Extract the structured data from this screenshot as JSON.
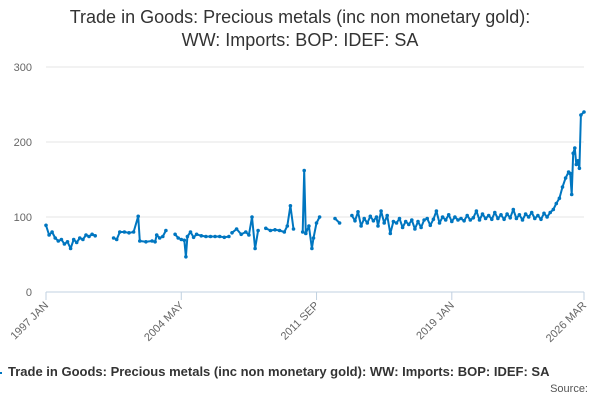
{
  "chart_data": {
    "type": "line",
    "title_lines": [
      "Trade in Goods: Precious metals (inc non monetary gold):",
      "WW: Imports: BOP: IDEF: SA"
    ],
    "xlabel": "",
    "ylabel": "",
    "ylim": [
      0,
      300
    ],
    "yticks": [
      0,
      100,
      200,
      300
    ],
    "xticks": [
      "1997 JAN",
      "2004 MAY",
      "2011 SEP",
      "2019 JAN",
      "2026 MAR"
    ],
    "grid": true,
    "legend_position": "bottom",
    "series": [
      {
        "name": "Trade in Goods: Precious metals (inc non monetary gold): WW: Imports: BOP: IDEF: SA",
        "color": "#0076c0",
        "points": [
          [
            "1997-01",
            89
          ],
          [
            "1997-03",
            76
          ],
          [
            "1997-05",
            80
          ],
          [
            "1997-07",
            72
          ],
          [
            "1997-09",
            68
          ],
          [
            "1997-11",
            70
          ],
          [
            "1998-01",
            64
          ],
          [
            "1998-03",
            67
          ],
          [
            "1998-05",
            58
          ],
          [
            "1998-07",
            70
          ],
          [
            "1998-09",
            66
          ],
          [
            "1998-11",
            72
          ],
          [
            "1999-01",
            70
          ],
          [
            "1999-03",
            76
          ],
          [
            "1999-05",
            74
          ],
          [
            "1999-07",
            77
          ],
          [
            "1999-09",
            75
          ],
          null,
          [
            "2000-09",
            72
          ],
          [
            "2000-11",
            70
          ],
          [
            "2001-01",
            80
          ],
          [
            "2001-04",
            80
          ],
          [
            "2001-07",
            79
          ],
          [
            "2001-10",
            80
          ],
          [
            "2002-01",
            101
          ],
          [
            "2002-02",
            68
          ],
          [
            "2002-06",
            67
          ],
          [
            "2002-10",
            68
          ],
          [
            "2002-12",
            67
          ],
          [
            "2003-01",
            76
          ],
          [
            "2003-03",
            72
          ],
          [
            "2003-05",
            74
          ],
          [
            "2003-07",
            82
          ],
          null,
          [
            "2004-01",
            77
          ],
          [
            "2004-03",
            72
          ],
          [
            "2004-05",
            70
          ],
          [
            "2004-07",
            69
          ],
          [
            "2004-08",
            47
          ],
          [
            "2004-09",
            74
          ],
          [
            "2004-11",
            80
          ],
          [
            "2005-01",
            73
          ],
          [
            "2005-03",
            77
          ],
          [
            "2005-06",
            75
          ],
          [
            "2005-09",
            74
          ],
          [
            "2005-12",
            74
          ],
          [
            "2006-03",
            74
          ],
          [
            "2006-06",
            74
          ],
          [
            "2006-09",
            73
          ],
          [
            "2006-12",
            74
          ],
          null,
          [
            "2007-02",
            79
          ],
          [
            "2007-05",
            84
          ],
          [
            "2007-08",
            77
          ],
          [
            "2007-11",
            80
          ],
          [
            "2008-01",
            76
          ],
          [
            "2008-03",
            100
          ],
          [
            "2008-05",
            58
          ],
          [
            "2008-07",
            82
          ],
          null,
          [
            "2008-12",
            85
          ],
          [
            "2009-03",
            82
          ],
          [
            "2009-06",
            83
          ],
          [
            "2009-09",
            82
          ],
          [
            "2009-12",
            80
          ],
          [
            "2010-02",
            88
          ],
          [
            "2010-04",
            115
          ],
          [
            "2010-06",
            84
          ],
          null,
          [
            "2010-12",
            80
          ],
          [
            "2011-01",
            162
          ],
          [
            "2011-02",
            78
          ],
          [
            "2011-04",
            88
          ],
          [
            "2011-06",
            58
          ],
          [
            "2011-07",
            72
          ],
          [
            "2011-09",
            92
          ],
          [
            "2011-11",
            100
          ],
          null,
          [
            "2012-09",
            98
          ],
          [
            "2012-12",
            92
          ],
          null,
          [
            "2013-08",
            102
          ],
          [
            "2013-10",
            95
          ],
          [
            "2013-12",
            107
          ],
          [
            "2014-02",
            88
          ],
          [
            "2014-04",
            98
          ],
          [
            "2014-06",
            92
          ],
          [
            "2014-08",
            101
          ],
          [
            "2014-10",
            95
          ],
          [
            "2014-12",
            100
          ],
          [
            "2015-01",
            88
          ],
          [
            "2015-03",
            108
          ],
          [
            "2015-05",
            92
          ],
          [
            "2015-07",
            102
          ],
          [
            "2015-09",
            78
          ],
          [
            "2015-11",
            94
          ],
          [
            "2016-01",
            92
          ],
          [
            "2016-03",
            98
          ],
          [
            "2016-05",
            86
          ],
          [
            "2016-07",
            94
          ],
          [
            "2016-09",
            90
          ],
          [
            "2016-11",
            96
          ],
          [
            "2017-01",
            84
          ],
          [
            "2017-03",
            94
          ],
          [
            "2017-05",
            86
          ],
          [
            "2017-07",
            96
          ],
          [
            "2017-09",
            98
          ],
          [
            "2017-11",
            89
          ],
          [
            "2018-01",
            97
          ],
          [
            "2018-03",
            108
          ],
          [
            "2018-05",
            92
          ],
          [
            "2018-07",
            100
          ],
          [
            "2018-09",
            96
          ],
          [
            "2018-11",
            103
          ],
          [
            "2019-01",
            94
          ],
          [
            "2019-03",
            100
          ],
          [
            "2019-05",
            96
          ],
          [
            "2019-07",
            98
          ],
          [
            "2019-09",
            95
          ],
          [
            "2019-11",
            102
          ],
          [
            "2020-01",
            96
          ],
          [
            "2020-03",
            99
          ],
          [
            "2020-05",
            108
          ],
          [
            "2020-07",
            96
          ],
          [
            "2020-09",
            104
          ],
          [
            "2020-11",
            98
          ],
          [
            "2021-01",
            102
          ],
          [
            "2021-03",
            97
          ],
          [
            "2021-05",
            106
          ],
          [
            "2021-07",
            98
          ],
          [
            "2021-09",
            103
          ],
          [
            "2021-11",
            97
          ],
          [
            "2022-01",
            104
          ],
          [
            "2022-03",
            99
          ],
          [
            "2022-05",
            110
          ],
          [
            "2022-07",
            98
          ],
          [
            "2022-09",
            103
          ],
          [
            "2022-11",
            96
          ],
          [
            "2023-01",
            104
          ],
          [
            "2023-03",
            100
          ],
          [
            "2023-05",
            106
          ],
          [
            "2023-07",
            98
          ],
          [
            "2023-09",
            102
          ],
          [
            "2023-11",
            97
          ],
          [
            "2024-01",
            105
          ],
          [
            "2024-03",
            100
          ],
          [
            "2024-05",
            106
          ],
          [
            "2024-07",
            110
          ],
          [
            "2024-09",
            118
          ],
          [
            "2024-11",
            125
          ],
          [
            "2025-01",
            140
          ],
          [
            "2025-03",
            152
          ],
          [
            "2025-05",
            160
          ],
          [
            "2025-06",
            158
          ],
          [
            "2025-07",
            130
          ],
          [
            "2025-08",
            185
          ],
          [
            "2025-09",
            192
          ],
          [
            "2025-10",
            170
          ],
          [
            "2025-11",
            175
          ],
          [
            "2025-12",
            165
          ],
          [
            "2026-01",
            236
          ],
          [
            "2026-03",
            240
          ]
        ]
      }
    ]
  },
  "legend": {
    "label": "Trade in Goods: Precious metals (inc non monetary gold): WW: Imports: BOP: IDEF: SA"
  },
  "footer": {
    "source": "Source:"
  }
}
